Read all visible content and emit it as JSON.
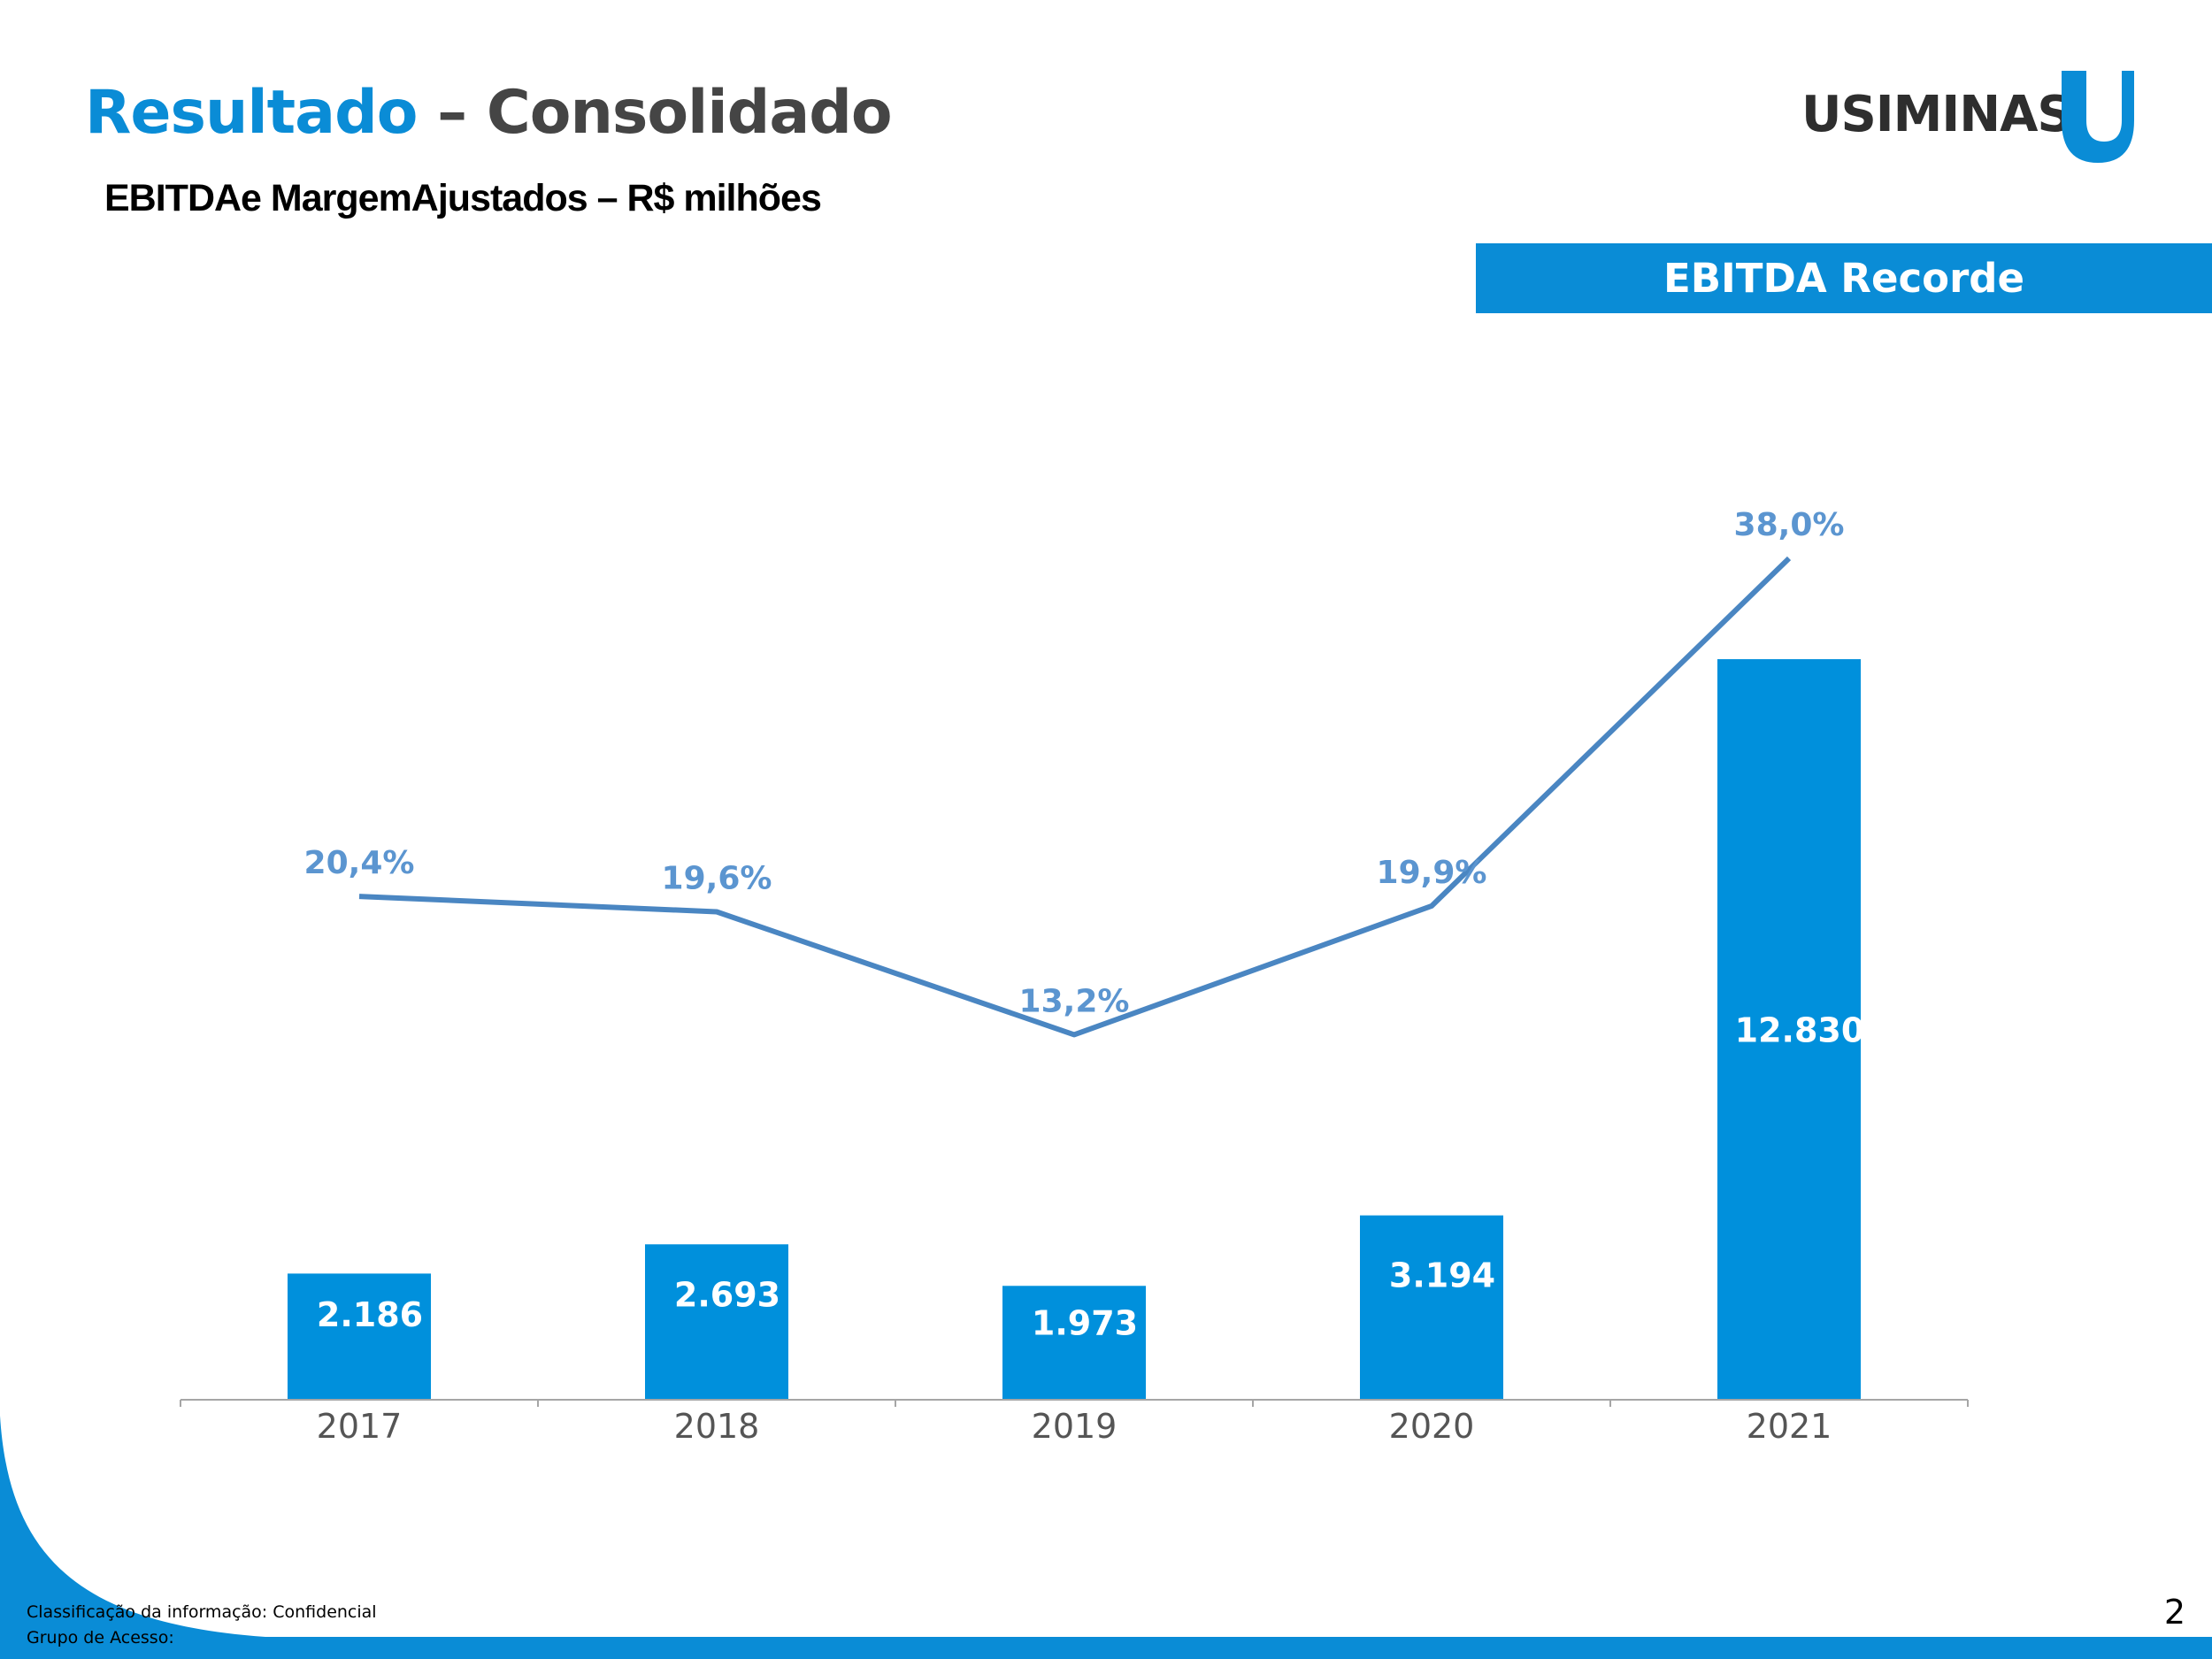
{
  "header": {
    "title_highlight": "Resultado",
    "title_rest": " – Consolidado",
    "subtitle": "EBITDAe MargemAjustados  – R$ milhões",
    "logo_text": "USIMINAS",
    "banner": "EBITDA Recorde"
  },
  "colors": {
    "accent": "#0a8cd6",
    "bar": "#0090dc",
    "line": "#4a86c2",
    "margin_label": "#5b95d0",
    "title_dark": "#454545"
  },
  "chart_data": {
    "type": "bar",
    "categories": [
      "2017",
      "2018",
      "2019",
      "2020",
      "2021"
    ],
    "series": [
      {
        "values": [
          2186,
          2693,
          1973,
          3194,
          12830
        ],
        "labels": [
          "2.186",
          "2.693",
          "1.973",
          "3.194",
          "12.830"
        ]
      },
      {
        "type": "line",
        "values": [
          20.4,
          19.6,
          13.2,
          19.9,
          38.0
        ],
        "labels": [
          "20,4%",
          "19,6%",
          "13,2%",
          "19,9%",
          "38,0%"
        ]
      }
    ],
    "grid": false,
    "legend": "none"
  },
  "footer": {
    "classification": "Classificação da informação: Confidencial",
    "access_group": "Grupo de Acesso:",
    "page_number": "2"
  }
}
